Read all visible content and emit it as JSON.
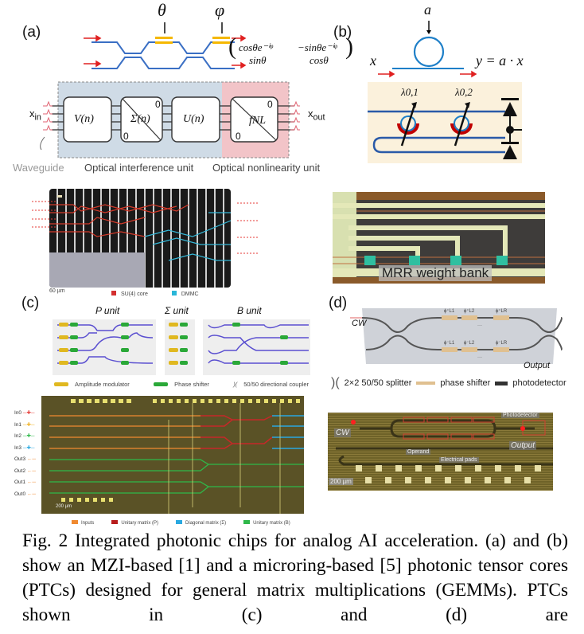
{
  "panel_a": {
    "label": "(a)",
    "theta": "θ",
    "phi": "φ",
    "matrix": {
      "r1c1": "cosθe⁻ⁱᵠ",
      "r1c2": "−sinθe⁻ⁱᵠ",
      "r2c1": "sinθ",
      "r2c2": "cosθ"
    },
    "x_in": "x",
    "x_in_sub": "in",
    "x_out": "x",
    "x_out_sub": "out",
    "blocks": [
      "V(n)",
      "Σ(n)",
      "U(n)",
      "fNL"
    ],
    "zero": "0",
    "waveguide_label": "Waveguide",
    "interference_label": "Optical interference unit",
    "nonlinearity_label": "Optical nonlinearity unit",
    "colors": {
      "interference_bg": "#cfdbe6",
      "nonlinearity_bg": "#f2c4c8",
      "waveguide": "#3a6fc4",
      "phase_shifter": "#f5b800",
      "arrow": "#e02020"
    }
  },
  "panel_b": {
    "label": "(b)",
    "a": "a",
    "x": "x",
    "y_eq": "y = a · x",
    "lambda1": "λ0,1",
    "lambda2": "λ0,2",
    "colors": {
      "ring": "#1e7fc8",
      "panel_bg": "#fbf1dc",
      "heater": "#c00000"
    }
  },
  "chip_1": {
    "scale": "60 µm",
    "legend": [
      {
        "label": "SU(4) core",
        "color": "#d32f2f"
      },
      {
        "label": "DMMC",
        "color": "#29b6d8"
      }
    ]
  },
  "chip_2": {
    "label": "MRR weight bank"
  },
  "panel_c": {
    "label": "(c)",
    "units": [
      "P unit",
      "Σ unit",
      "B unit"
    ],
    "legend": [
      "Amplitude modulator",
      "Phase shifter",
      "50/50 directional coupler"
    ],
    "ports": [
      "In0",
      "In1",
      "In2",
      "In3",
      "Out3",
      "Out2",
      "Out1",
      "Out0"
    ],
    "scale": "200 µm",
    "chip_legend": [
      {
        "label": "Inputs",
        "color": "#f08a30"
      },
      {
        "label": "Unitary matrix (P)",
        "color": "#b71c1c"
      },
      {
        "label": "Diagonal matrix (Σ)",
        "color": "#29a8e0"
      },
      {
        "label": "Unitary matrix (B)",
        "color": "#2fb84a"
      }
    ]
  },
  "panel_d": {
    "label": "(d)",
    "cw": "CW",
    "output": "Output",
    "legend": [
      "2×2 50/50 splitter",
      "phase shifter",
      "photodetector"
    ],
    "chip_labels": {
      "cw": "CW",
      "photodetector": "Photodetector",
      "output": "Output",
      "operand": "Operand",
      "pads": "Electrical pads",
      "scale": "200 µm"
    }
  },
  "caption": "Fig. 2 Integrated photonic chips for analog AI acceleration. (a) and (b) show an MZI-based [1] and a microring-based [5] photonic tensor cores (PTCs) designed for general matrix multiplications (GEMMs). PTCs shown in (c) and (d) are"
}
